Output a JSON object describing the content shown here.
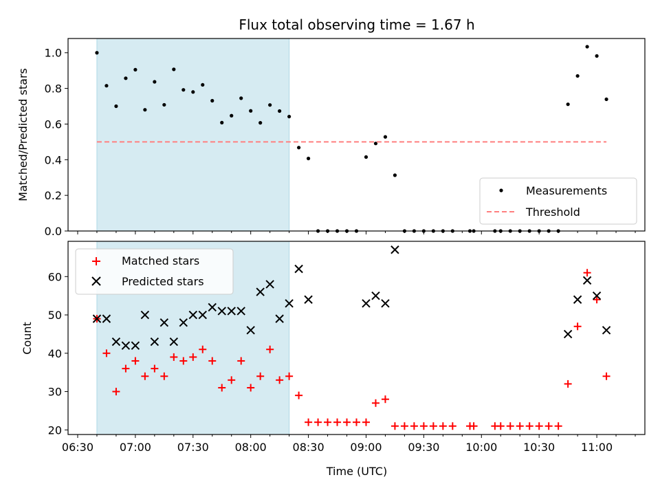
{
  "chart_data": [
    {
      "type": "scatter",
      "title": "Flux total observing time = 1.67 h",
      "xlabel": "",
      "ylabel": "Matched/Predicted stars",
      "xlim": [
        "06:25",
        "11:25"
      ],
      "ylim": [
        0,
        1.08
      ],
      "yticks": [
        "0.0",
        "0.2",
        "0.4",
        "0.6",
        "0.8",
        "1.0"
      ],
      "shaded_region": [
        "06:40",
        "08:20"
      ],
      "shaded_color": "#add8e6",
      "legend_position": "lower-right",
      "series": [
        {
          "name": "Measurements",
          "marker": "dot",
          "color": "#000000",
          "points": [
            [
              "06:40",
              1.0
            ],
            [
              "06:45",
              0.815
            ],
            [
              "06:50",
              0.7
            ],
            [
              "06:55",
              0.857
            ],
            [
              "07:00",
              0.905
            ],
            [
              "07:05",
              0.68
            ],
            [
              "07:10",
              0.837
            ],
            [
              "07:15",
              0.708
            ],
            [
              "07:20",
              0.907
            ],
            [
              "07:25",
              0.792
            ],
            [
              "07:30",
              0.78
            ],
            [
              "07:35",
              0.82
            ],
            [
              "07:40",
              0.731
            ],
            [
              "07:45",
              0.608
            ],
            [
              "07:50",
              0.647
            ],
            [
              "07:55",
              0.745
            ],
            [
              "08:00",
              0.674
            ],
            [
              "08:05",
              0.607
            ],
            [
              "08:10",
              0.707
            ],
            [
              "08:15",
              0.673
            ],
            [
              "08:20",
              0.642
            ],
            [
              "08:25",
              0.468
            ],
            [
              "08:30",
              0.407
            ],
            [
              "08:35",
              0.0
            ],
            [
              "08:40",
              0.0
            ],
            [
              "08:45",
              0.0
            ],
            [
              "08:50",
              0.0
            ],
            [
              "08:55",
              0.0
            ],
            [
              "09:00",
              0.415
            ],
            [
              "09:05",
              0.491
            ],
            [
              "09:10",
              0.528
            ],
            [
              "09:15",
              0.313
            ],
            [
              "09:20",
              0.0
            ],
            [
              "09:25",
              0.0
            ],
            [
              "09:30",
              0.0
            ],
            [
              "09:35",
              0.0
            ],
            [
              "09:40",
              0.0
            ],
            [
              "09:45",
              0.0
            ],
            [
              "09:54",
              0.0
            ],
            [
              "09:56",
              0.0
            ],
            [
              "10:07",
              0.0
            ],
            [
              "10:10",
              0.0
            ],
            [
              "10:15",
              0.0
            ],
            [
              "10:20",
              0.0
            ],
            [
              "10:25",
              0.0
            ],
            [
              "10:30",
              0.0
            ],
            [
              "10:35",
              0.0
            ],
            [
              "10:40",
              0.0
            ],
            [
              "10:45",
              0.711
            ],
            [
              "10:50",
              0.87
            ],
            [
              "10:55",
              1.034
            ],
            [
              "11:00",
              0.982
            ],
            [
              "11:05",
              0.739
            ]
          ]
        },
        {
          "name": "Threshold",
          "marker": "dashed-line",
          "color": "#ff7f7f",
          "points": [
            [
              "06:40",
              0.5
            ],
            [
              "11:05",
              0.5
            ]
          ]
        }
      ]
    },
    {
      "type": "scatter",
      "title": "",
      "xlabel": "Time (UTC)",
      "ylabel": "Count",
      "xlim": [
        "06:25",
        "11:25"
      ],
      "ylim": [
        18.8,
        69.2
      ],
      "yticks": [
        "20",
        "30",
        "40",
        "50",
        "60"
      ],
      "xticks": [
        "06:30",
        "07:00",
        "07:30",
        "08:00",
        "08:30",
        "09:00",
        "09:30",
        "10:00",
        "10:30",
        "11:00"
      ],
      "shaded_region": [
        "06:40",
        "08:20"
      ],
      "shaded_color": "#add8e6",
      "legend_position": "upper-left",
      "series": [
        {
          "name": "Matched stars",
          "marker": "plus",
          "color": "#ff0000",
          "points": [
            [
              "06:40",
              49
            ],
            [
              "06:45",
              40
            ],
            [
              "06:50",
              30
            ],
            [
              "06:55",
              36
            ],
            [
              "07:00",
              38
            ],
            [
              "07:05",
              34
            ],
            [
              "07:10",
              36
            ],
            [
              "07:15",
              34
            ],
            [
              "07:20",
              39
            ],
            [
              "07:25",
              38
            ],
            [
              "07:30",
              39
            ],
            [
              "07:35",
              41
            ],
            [
              "07:40",
              38
            ],
            [
              "07:45",
              31
            ],
            [
              "07:50",
              33
            ],
            [
              "07:55",
              38
            ],
            [
              "08:00",
              31
            ],
            [
              "08:05",
              34
            ],
            [
              "08:10",
              41
            ],
            [
              "08:15",
              33
            ],
            [
              "08:20",
              34
            ],
            [
              "08:25",
              29
            ],
            [
              "08:30",
              22
            ],
            [
              "08:35",
              22
            ],
            [
              "08:40",
              22
            ],
            [
              "08:45",
              22
            ],
            [
              "08:50",
              22
            ],
            [
              "08:55",
              22
            ],
            [
              "09:00",
              22
            ],
            [
              "09:05",
              27
            ],
            [
              "09:10",
              28
            ],
            [
              "09:15",
              21
            ],
            [
              "09:20",
              21
            ],
            [
              "09:25",
              21
            ],
            [
              "09:30",
              21
            ],
            [
              "09:35",
              21
            ],
            [
              "09:40",
              21
            ],
            [
              "09:45",
              21
            ],
            [
              "09:54",
              21
            ],
            [
              "09:56",
              21
            ],
            [
              "10:07",
              21
            ],
            [
              "10:10",
              21
            ],
            [
              "10:15",
              21
            ],
            [
              "10:20",
              21
            ],
            [
              "10:25",
              21
            ],
            [
              "10:30",
              21
            ],
            [
              "10:35",
              21
            ],
            [
              "10:40",
              21
            ],
            [
              "10:45",
              32
            ],
            [
              "10:50",
              47
            ],
            [
              "10:55",
              61
            ],
            [
              "11:00",
              54
            ],
            [
              "11:05",
              34
            ]
          ]
        },
        {
          "name": "Predicted stars",
          "marker": "x",
          "color": "#000000",
          "points": [
            [
              "06:40",
              49
            ],
            [
              "06:45",
              49
            ],
            [
              "06:50",
              43
            ],
            [
              "06:55",
              42
            ],
            [
              "07:00",
              42
            ],
            [
              "07:05",
              50
            ],
            [
              "07:10",
              43
            ],
            [
              "07:15",
              48
            ],
            [
              "07:20",
              43
            ],
            [
              "07:25",
              48
            ],
            [
              "07:30",
              50
            ],
            [
              "07:35",
              50
            ],
            [
              "07:40",
              52
            ],
            [
              "07:45",
              51
            ],
            [
              "07:50",
              51
            ],
            [
              "07:55",
              51
            ],
            [
              "08:00",
              46
            ],
            [
              "08:05",
              56
            ],
            [
              "08:10",
              58
            ],
            [
              "08:15",
              49
            ],
            [
              "08:20",
              53
            ],
            [
              "08:25",
              62
            ],
            [
              "08:30",
              54
            ],
            [
              "09:00",
              53
            ],
            [
              "09:05",
              55
            ],
            [
              "09:10",
              53
            ],
            [
              "09:15",
              67
            ],
            [
              "10:45",
              45
            ],
            [
              "10:50",
              54
            ],
            [
              "10:55",
              59
            ],
            [
              "11:00",
              55
            ],
            [
              "11:05",
              46
            ]
          ]
        }
      ]
    }
  ]
}
